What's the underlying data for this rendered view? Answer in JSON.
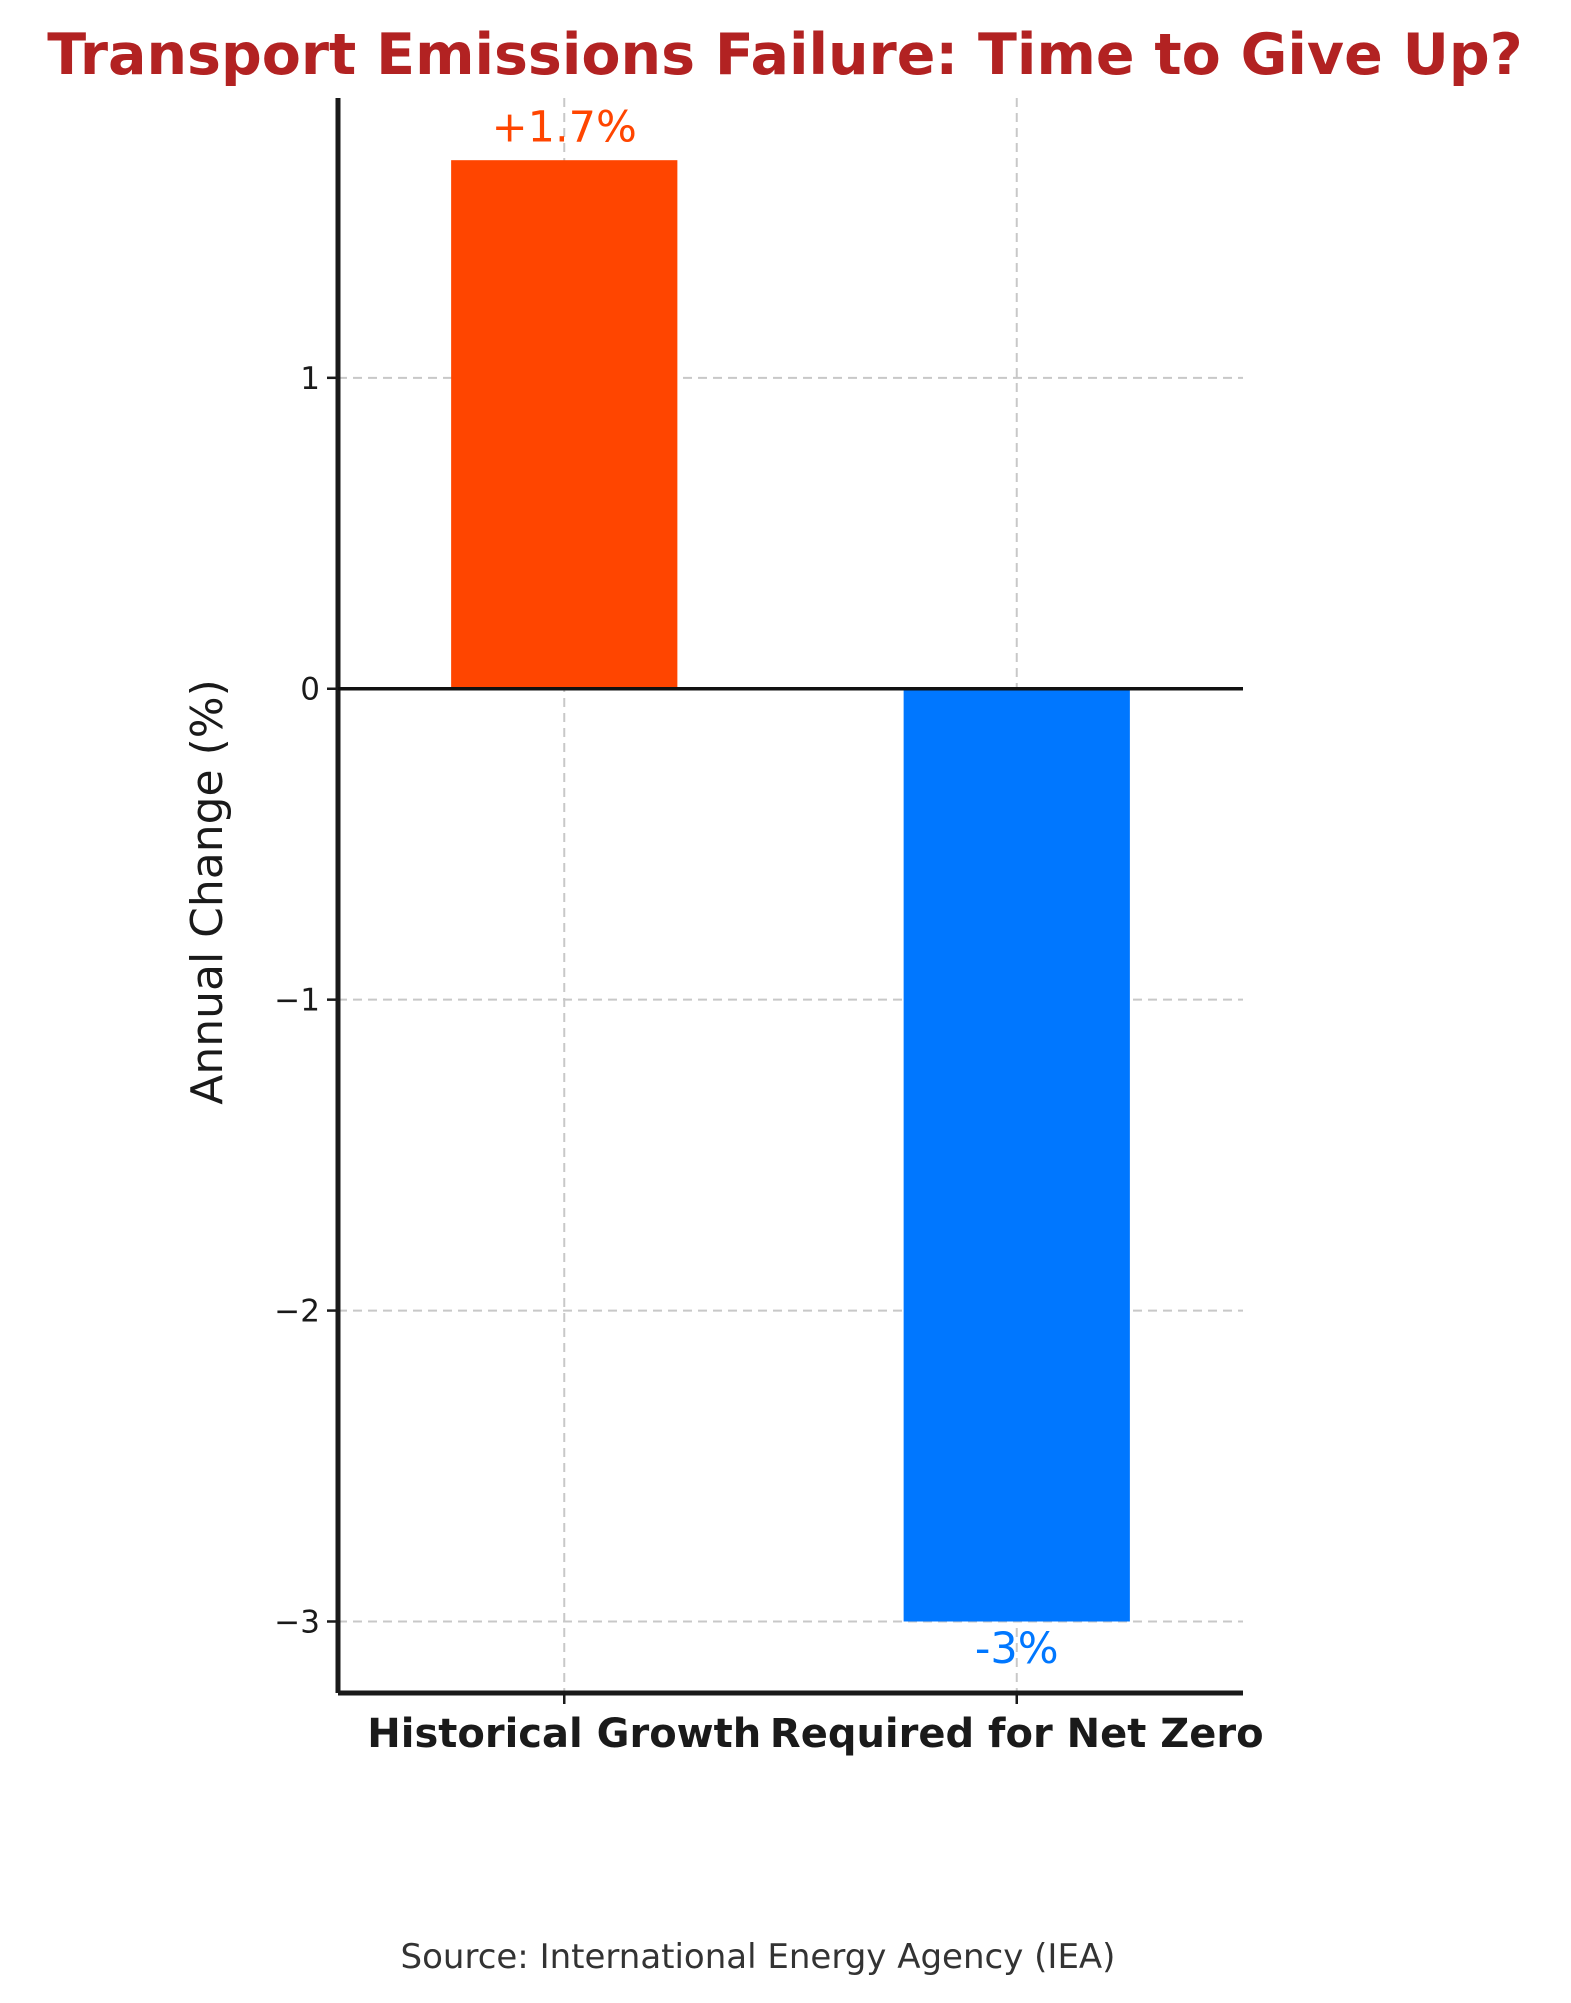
{
  "chart_data": {
    "type": "bar",
    "title": "Transport Emissions Failure: Time to Give Up?",
    "title_color": "#b22222",
    "ylabel": "Annual Change (%)",
    "categories": [
      "Historical Growth",
      "Required for Net Zero"
    ],
    "values": [
      1.7,
      -3
    ],
    "data_labels": [
      "+1.7%",
      "-3%"
    ],
    "bar_colors": [
      "#ff4500",
      "#0077ff"
    ],
    "ylim": [
      -3.23,
      1.9
    ],
    "yticks": [
      1,
      0,
      -1,
      -2,
      -3
    ],
    "ytick_labels": [
      "1",
      "0",
      "−1",
      "−2",
      "−3"
    ],
    "grid": true,
    "zero_line": true
  },
  "footer": {
    "source": "Source: International Energy Agency (IEA)"
  }
}
